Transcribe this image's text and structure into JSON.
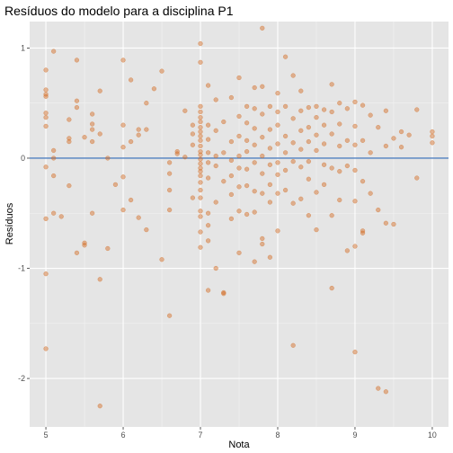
{
  "chart_data": {
    "type": "scatter",
    "title": "Resíduos do modelo para a disciplina P1",
    "xlabel": "Nota",
    "ylabel": "Resíduos",
    "xlim": [
      4.79,
      10.21
    ],
    "ylim": [
      -2.44,
      1.24
    ],
    "x_ticks": [
      5,
      6,
      7,
      8,
      9,
      10
    ],
    "y_ticks": [
      -2,
      -1,
      0,
      1
    ],
    "x_tick_labels": [
      "5",
      "6",
      "7",
      "8",
      "9",
      "10"
    ],
    "y_tick_labels": [
      "-2",
      "-1",
      "0",
      "1"
    ],
    "grid": true,
    "reference_line": 0,
    "colors": {
      "panel": "#e5e5e5",
      "grid_major": "#ffffff",
      "grid_minor": "#f2f2f2",
      "point": "#d2691e",
      "reference_line": "#4f7fbf"
    },
    "points": [
      [
        5.0,
        0.8
      ],
      [
        5.0,
        0.62
      ],
      [
        5.0,
        0.58
      ],
      [
        5.0,
        0.56
      ],
      [
        5.0,
        0.41
      ],
      [
        5.0,
        0.37
      ],
      [
        5.0,
        0.29
      ],
      [
        5.0,
        -0.08
      ],
      [
        5.0,
        -0.55
      ],
      [
        5.0,
        -1.05
      ],
      [
        5.0,
        -1.73
      ],
      [
        5.1,
        0.97
      ],
      [
        5.1,
        0.07
      ],
      [
        5.1,
        0.0
      ],
      [
        5.1,
        -0.16
      ],
      [
        5.1,
        -0.5
      ],
      [
        5.2,
        -0.53
      ],
      [
        5.3,
        0.35
      ],
      [
        5.3,
        0.18
      ],
      [
        5.3,
        0.15
      ],
      [
        5.3,
        -0.25
      ],
      [
        5.4,
        0.89
      ],
      [
        5.4,
        0.52
      ],
      [
        5.4,
        0.46
      ],
      [
        5.4,
        -0.86
      ],
      [
        5.5,
        0.19
      ],
      [
        5.5,
        -0.77
      ],
      [
        5.5,
        -0.79
      ],
      [
        5.6,
        0.4
      ],
      [
        5.6,
        0.31
      ],
      [
        5.6,
        0.26
      ],
      [
        5.6,
        0.15
      ],
      [
        5.6,
        -0.5
      ],
      [
        5.7,
        0.61
      ],
      [
        5.7,
        0.22
      ],
      [
        5.7,
        -1.1
      ],
      [
        5.7,
        -2.25
      ],
      [
        5.8,
        0.0
      ],
      [
        5.8,
        -0.82
      ],
      [
        5.9,
        -0.24
      ],
      [
        6.0,
        0.89
      ],
      [
        6.0,
        0.3
      ],
      [
        6.0,
        0.1
      ],
      [
        6.0,
        -0.17
      ],
      [
        6.0,
        -0.47
      ],
      [
        6.1,
        0.71
      ],
      [
        6.1,
        0.15
      ],
      [
        6.1,
        -0.38
      ],
      [
        6.2,
        0.26
      ],
      [
        6.2,
        0.21
      ],
      [
        6.2,
        -0.54
      ],
      [
        6.3,
        0.5
      ],
      [
        6.3,
        0.26
      ],
      [
        6.3,
        -0.65
      ],
      [
        6.4,
        0.63
      ],
      [
        6.5,
        0.79
      ],
      [
        6.5,
        -0.92
      ],
      [
        6.6,
        -1.43
      ],
      [
        6.6,
        -0.04
      ],
      [
        6.6,
        -0.29
      ],
      [
        6.6,
        -0.47
      ],
      [
        6.6,
        -0.14
      ],
      [
        6.7,
        0.06
      ],
      [
        6.7,
        0.04
      ],
      [
        6.8,
        0.01
      ],
      [
        6.8,
        0.43
      ],
      [
        6.9,
        0.22
      ],
      [
        6.9,
        0.12
      ],
      [
        6.9,
        0.3
      ],
      [
        6.9,
        -0.36
      ],
      [
        7.0,
        1.04
      ],
      [
        7.0,
        0.87
      ],
      [
        7.0,
        0.47
      ],
      [
        7.0,
        0.42
      ],
      [
        7.0,
        0.37
      ],
      [
        7.0,
        0.33
      ],
      [
        7.0,
        0.28
      ],
      [
        7.0,
        0.24
      ],
      [
        7.0,
        0.2
      ],
      [
        7.0,
        0.16
      ],
      [
        7.0,
        0.11
      ],
      [
        7.0,
        0.06
      ],
      [
        7.0,
        0.03
      ],
      [
        7.0,
        -0.01
      ],
      [
        7.0,
        -0.05
      ],
      [
        7.0,
        -0.09
      ],
      [
        7.0,
        -0.12
      ],
      [
        7.0,
        -0.16
      ],
      [
        7.0,
        -0.22
      ],
      [
        7.0,
        -0.29
      ],
      [
        7.0,
        -0.36
      ],
      [
        7.0,
        -0.48
      ],
      [
        7.0,
        -0.53
      ],
      [
        7.0,
        -0.67
      ],
      [
        7.0,
        -0.81
      ],
      [
        7.1,
        0.66
      ],
      [
        7.1,
        0.3
      ],
      [
        7.1,
        0.17
      ],
      [
        7.1,
        0.05
      ],
      [
        7.1,
        -0.04
      ],
      [
        7.1,
        -0.18
      ],
      [
        7.1,
        -0.5
      ],
      [
        7.1,
        -0.61
      ],
      [
        7.1,
        -0.75
      ],
      [
        7.1,
        -1.2
      ],
      [
        7.2,
        0.53
      ],
      [
        7.2,
        0.25
      ],
      [
        7.2,
        0.02
      ],
      [
        7.2,
        -0.07
      ],
      [
        7.2,
        -0.4
      ],
      [
        7.2,
        -1.0
      ],
      [
        7.3,
        0.33
      ],
      [
        7.3,
        0.05
      ],
      [
        7.3,
        -0.21
      ],
      [
        7.3,
        -1.23
      ],
      [
        7.3,
        -1.22
      ],
      [
        7.4,
        0.55
      ],
      [
        7.4,
        0.15
      ],
      [
        7.4,
        -0.02
      ],
      [
        7.4,
        -0.16
      ],
      [
        7.4,
        -0.33
      ],
      [
        7.4,
        -0.55
      ],
      [
        7.5,
        0.73
      ],
      [
        7.5,
        0.38
      ],
      [
        7.5,
        0.2
      ],
      [
        7.5,
        0.02
      ],
      [
        7.5,
        -0.09
      ],
      [
        7.5,
        -0.26
      ],
      [
        7.5,
        -0.48
      ],
      [
        7.5,
        -0.86
      ],
      [
        7.6,
        0.47
      ],
      [
        7.6,
        0.32
      ],
      [
        7.6,
        0.16
      ],
      [
        7.6,
        0.06
      ],
      [
        7.6,
        -0.1
      ],
      [
        7.6,
        -0.25
      ],
      [
        7.6,
        -0.51
      ],
      [
        7.7,
        0.64
      ],
      [
        7.7,
        0.45
      ],
      [
        7.7,
        0.27
      ],
      [
        7.7,
        0.12
      ],
      [
        7.7,
        -0.04
      ],
      [
        7.7,
        -0.3
      ],
      [
        7.7,
        -0.49
      ],
      [
        7.7,
        -0.94
      ],
      [
        7.8,
        1.18
      ],
      [
        7.8,
        0.65
      ],
      [
        7.8,
        0.4
      ],
      [
        7.8,
        0.19
      ],
      [
        7.8,
        0.02
      ],
      [
        7.8,
        -0.14
      ],
      [
        7.8,
        -0.32
      ],
      [
        7.8,
        -0.73
      ],
      [
        7.8,
        -0.78
      ],
      [
        7.9,
        0.47
      ],
      [
        7.9,
        0.26
      ],
      [
        7.9,
        0.09
      ],
      [
        7.9,
        -0.06
      ],
      [
        7.9,
        -0.24
      ],
      [
        7.9,
        -0.4
      ],
      [
        7.9,
        -0.9
      ],
      [
        8.0,
        0.59
      ],
      [
        8.0,
        0.42
      ],
      [
        8.0,
        0.3
      ],
      [
        8.0,
        0.13
      ],
      [
        8.0,
        -0.04
      ],
      [
        8.0,
        -0.15
      ],
      [
        8.0,
        -0.32
      ],
      [
        8.0,
        -0.66
      ],
      [
        8.1,
        0.92
      ],
      [
        8.1,
        0.47
      ],
      [
        8.1,
        0.2
      ],
      [
        8.1,
        0.05
      ],
      [
        8.1,
        -0.11
      ],
      [
        8.1,
        -0.29
      ],
      [
        8.2,
        0.75
      ],
      [
        8.2,
        0.36
      ],
      [
        8.2,
        0.14
      ],
      [
        8.2,
        -0.03
      ],
      [
        8.2,
        -0.41
      ],
      [
        8.2,
        -1.7
      ],
      [
        8.3,
        0.61
      ],
      [
        8.3,
        0.43
      ],
      [
        8.3,
        0.25
      ],
      [
        8.3,
        0.08
      ],
      [
        8.3,
        -0.08
      ],
      [
        8.3,
        -0.37
      ],
      [
        8.4,
        0.46
      ],
      [
        8.4,
        0.28
      ],
      [
        8.4,
        0.15
      ],
      [
        8.4,
        -0.03
      ],
      [
        8.4,
        -0.19
      ],
      [
        8.4,
        -0.52
      ],
      [
        8.5,
        0.47
      ],
      [
        8.5,
        0.37
      ],
      [
        8.5,
        0.21
      ],
      [
        8.5,
        0.07
      ],
      [
        8.5,
        -0.31
      ],
      [
        8.5,
        -0.65
      ],
      [
        8.6,
        0.44
      ],
      [
        8.6,
        0.3
      ],
      [
        8.6,
        0.13
      ],
      [
        8.6,
        -0.06
      ],
      [
        8.6,
        -0.24
      ],
      [
        8.7,
        0.67
      ],
      [
        8.7,
        0.42
      ],
      [
        8.7,
        0.22
      ],
      [
        8.7,
        -0.09
      ],
      [
        8.7,
        -0.52
      ],
      [
        8.7,
        -1.18
      ],
      [
        8.8,
        0.5
      ],
      [
        8.8,
        0.31
      ],
      [
        8.8,
        0.11
      ],
      [
        8.8,
        -0.12
      ],
      [
        8.8,
        -0.38
      ],
      [
        8.9,
        0.45
      ],
      [
        8.9,
        0.16
      ],
      [
        8.9,
        -0.07
      ],
      [
        8.9,
        -0.84
      ],
      [
        9.0,
        0.51
      ],
      [
        9.0,
        0.29
      ],
      [
        9.0,
        0.12
      ],
      [
        9.0,
        -0.11
      ],
      [
        9.0,
        -0.39
      ],
      [
        9.0,
        -0.8
      ],
      [
        9.0,
        -1.76
      ],
      [
        9.1,
        0.48
      ],
      [
        9.1,
        0.16
      ],
      [
        9.1,
        -0.21
      ],
      [
        9.1,
        -0.66
      ],
      [
        9.1,
        -0.68
      ],
      [
        9.2,
        0.39
      ],
      [
        9.2,
        0.05
      ],
      [
        9.2,
        -0.32
      ],
      [
        9.3,
        0.28
      ],
      [
        9.3,
        -0.47
      ],
      [
        9.3,
        -2.09
      ],
      [
        9.4,
        0.43
      ],
      [
        9.4,
        0.11
      ],
      [
        9.4,
        -0.59
      ],
      [
        9.4,
        -2.12
      ],
      [
        9.5,
        0.18
      ],
      [
        9.5,
        -0.6
      ],
      [
        9.6,
        0.24
      ],
      [
        9.6,
        0.1
      ],
      [
        9.7,
        0.21
      ],
      [
        9.8,
        0.44
      ],
      [
        9.8,
        -0.18
      ],
      [
        10.0,
        0.24
      ],
      [
        10.0,
        0.2
      ],
      [
        10.0,
        0.14
      ]
    ]
  }
}
